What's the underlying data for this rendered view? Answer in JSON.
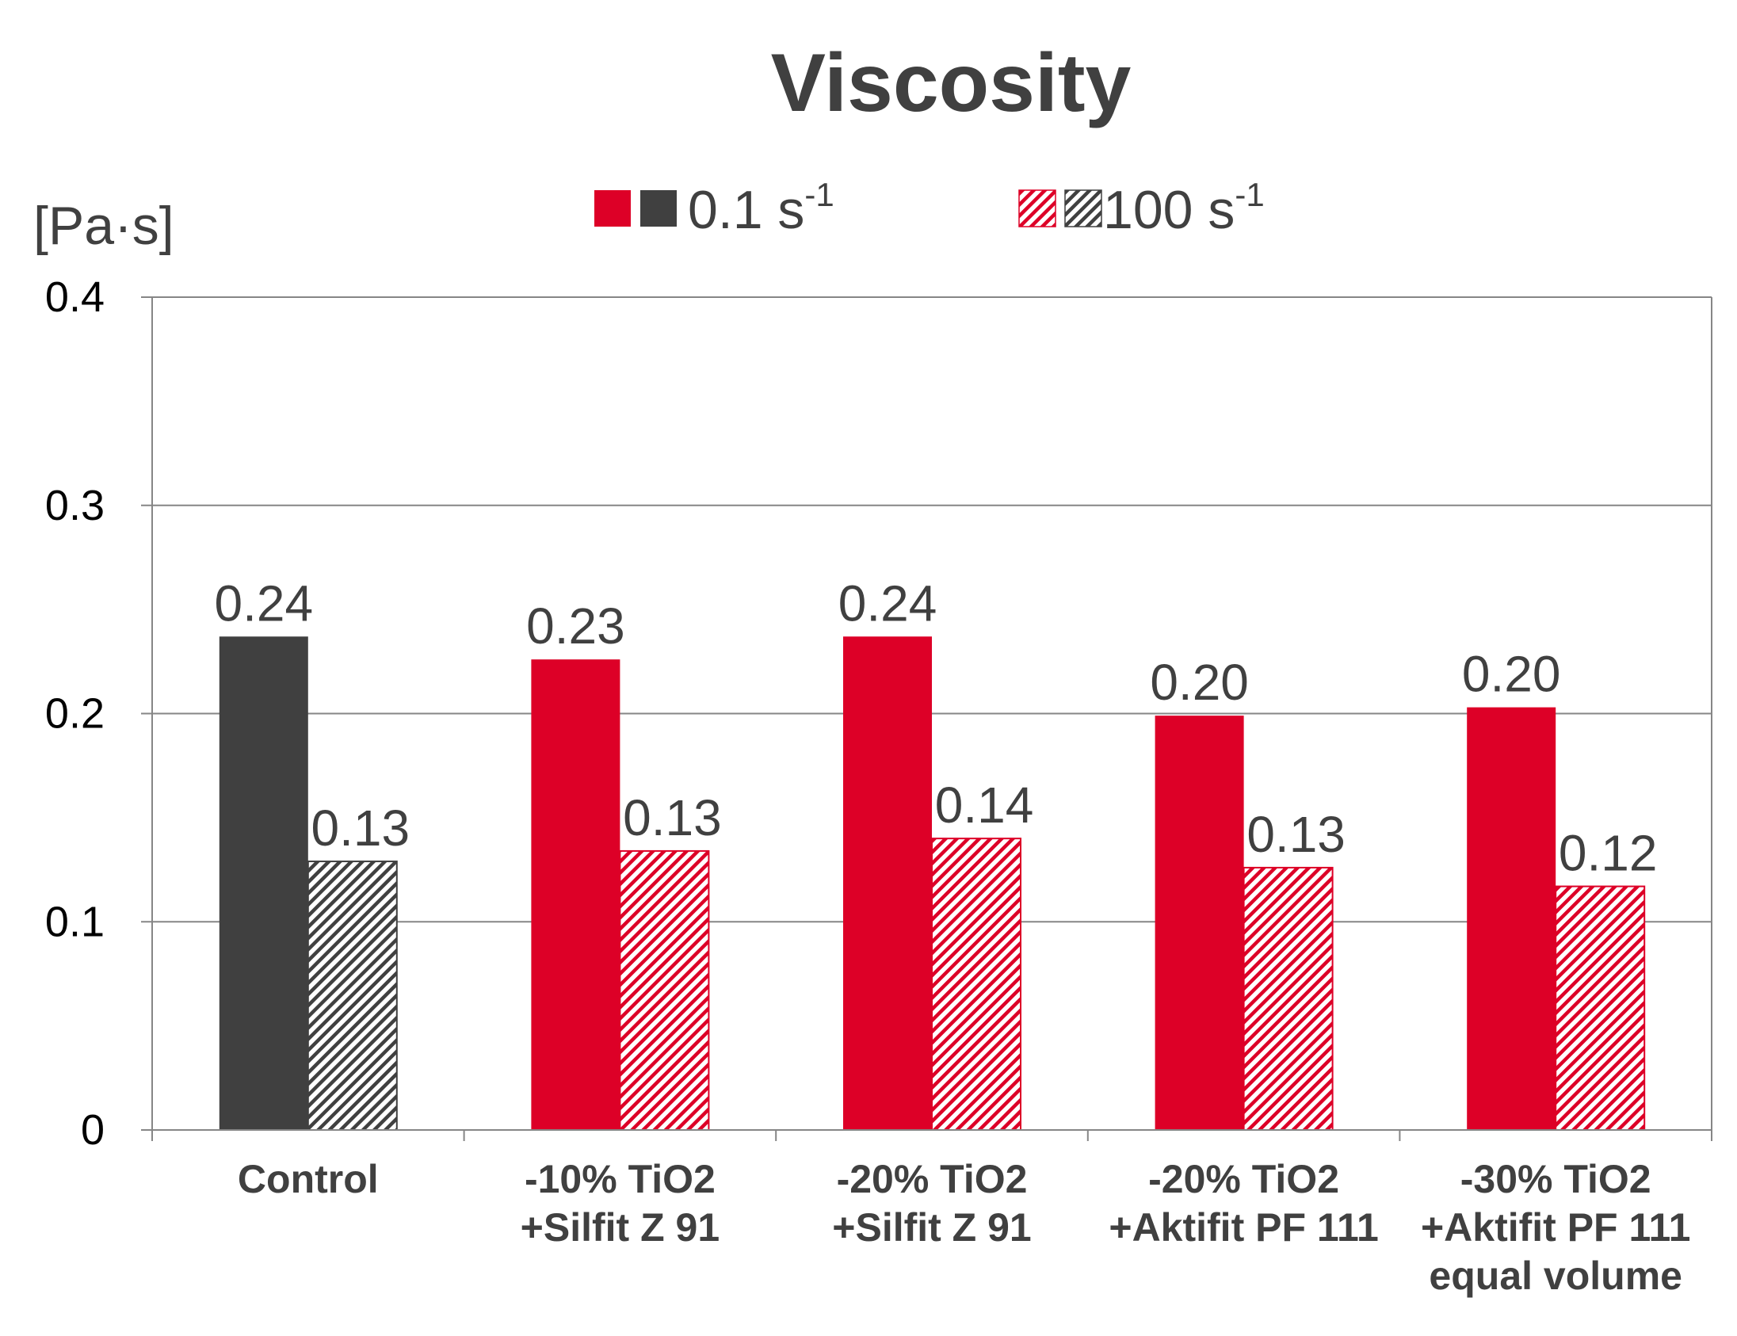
{
  "chart_data": {
    "type": "bar",
    "title": "Viscosity",
    "ylabel": "[Pa·s]",
    "ylim": [
      0,
      0.4
    ],
    "yticks": [
      "0",
      "0.1",
      "0.2",
      "0.3",
      "0.4"
    ],
    "ytick_values": [
      0,
      0.1,
      0.2,
      0.3,
      0.4
    ],
    "grid": true,
    "legend_position": "top",
    "categories": [
      [
        "Control"
      ],
      [
        "-10% TiO2",
        "+Silfit Z 91"
      ],
      [
        "-20% TiO2",
        "+Silfit Z 91"
      ],
      [
        "-20% TiO2",
        "+Aktifit PF 111"
      ],
      [
        "-30% TiO2",
        "+Aktifit PF 111",
        "equal volume"
      ]
    ],
    "series": [
      {
        "name": "0.1 s",
        "superscript": "-1",
        "pattern": "solid",
        "values": [
          0.237,
          0.226,
          0.237,
          0.199,
          0.203
        ],
        "labels": [
          "0.24",
          "0.23",
          "0.24",
          "0.20",
          "0.20"
        ]
      },
      {
        "name": "100 s",
        "superscript": "-1",
        "pattern": "hatched",
        "values": [
          0.129,
          0.134,
          0.14,
          0.126,
          0.117
        ],
        "labels": [
          "0.13",
          "0.13",
          "0.14",
          "0.13",
          "0.12"
        ]
      }
    ],
    "colors": {
      "control": "#404040",
      "treatment": "#dd0027",
      "text": "#404040",
      "grid": "#868686"
    }
  }
}
